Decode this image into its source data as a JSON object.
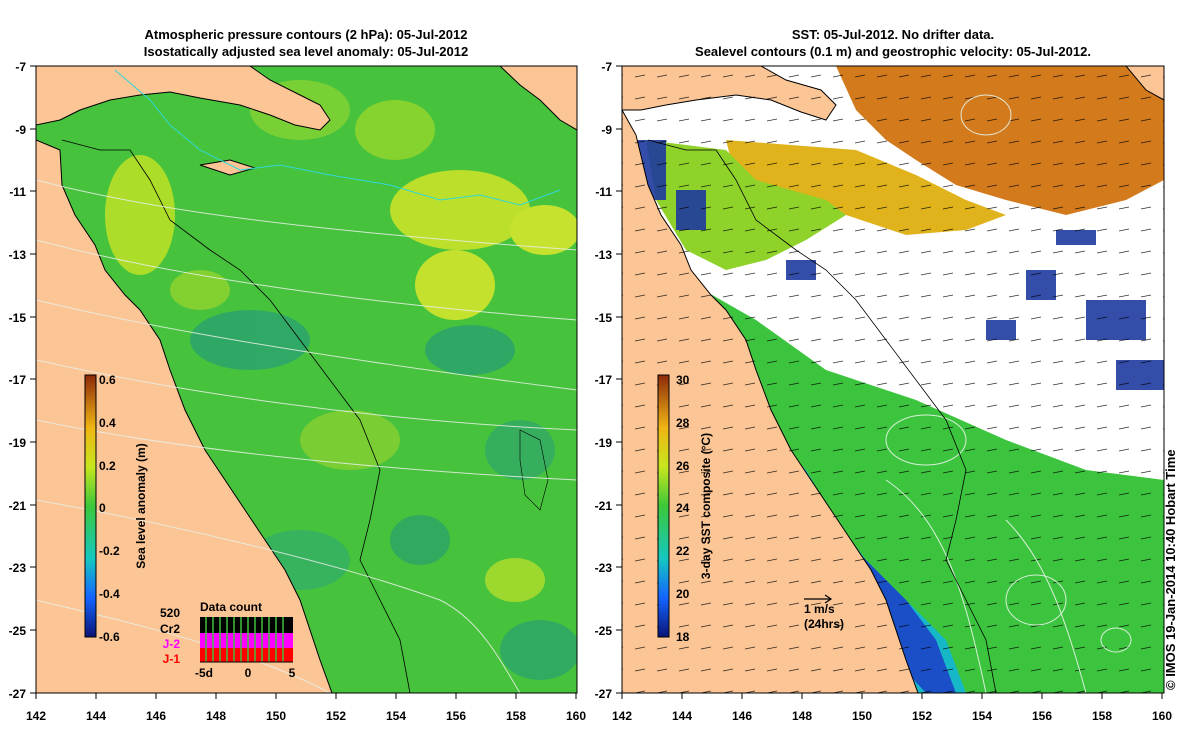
{
  "left_map": {
    "title_line1": "Atmospheric pressure contours (2 hPa): 05-Jul-2012",
    "title_line2": "Isostatically adjusted sea level anomaly: 05-Jul-2012",
    "x_ticks": [
      "142",
      "144",
      "146",
      "148",
      "150",
      "152",
      "154",
      "156",
      "158",
      "160"
    ],
    "y_ticks": [
      "-7",
      "-9",
      "-11",
      "-13",
      "-15",
      "-17",
      "-19",
      "-21",
      "-23",
      "-25",
      "-27"
    ],
    "colorbar": {
      "label": "Sea level anomaly (m)",
      "ticks": [
        "0.6",
        "0.4",
        "0.2",
        "0",
        "-0.2",
        "-0.4",
        "-0.6"
      ],
      "range": [
        -0.6,
        0.6
      ]
    },
    "data_count": {
      "title": "Data count",
      "total": "520",
      "missions": [
        "Cr2",
        "J-2",
        "J-1"
      ],
      "mission_colors": [
        "#000000",
        "#ff00ff",
        "#ff0000"
      ],
      "x_ticks": [
        "-5d",
        "0",
        "5"
      ]
    }
  },
  "right_map": {
    "title_line1": "SST: 05-Jul-2012. No drifter data.",
    "title_line2": "Sealevel contours (0.1 m) and geostrophic velocity: 05-Jul-2012.",
    "x_ticks": [
      "142",
      "144",
      "146",
      "148",
      "150",
      "152",
      "154",
      "156",
      "158",
      "160"
    ],
    "y_ticks": [
      "-7",
      "-9",
      "-11",
      "-13",
      "-15",
      "-17",
      "-19",
      "-21",
      "-23",
      "-25",
      "-27"
    ],
    "colorbar": {
      "label": "3-day SST composite (°C)",
      "ticks": [
        "30",
        "28",
        "26",
        "24",
        "22",
        "20",
        "18"
      ],
      "range": [
        18,
        30
      ]
    },
    "scale_arrow": {
      "label1": "1 m/s",
      "label2": "(24hrs)"
    }
  },
  "credit": "© IMOS 19-Jan-2014 10:40 Hobart Time",
  "colors": {
    "land": "#fbc595",
    "sla_green": "#3dc93a",
    "sst_orange": "#d97a1e",
    "sst_blue": "#1a56c8"
  }
}
